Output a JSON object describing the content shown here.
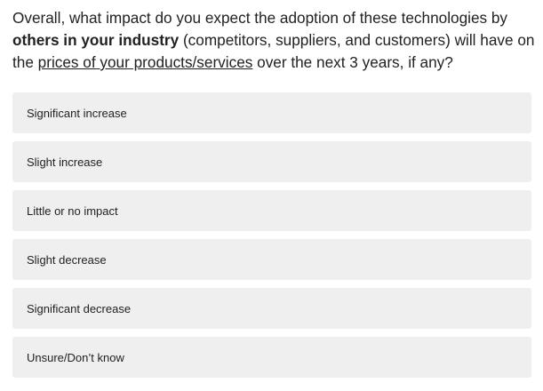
{
  "question": {
    "part1": "Overall, what impact do you expect the adoption of these technologies by ",
    "bold": "others in your industry",
    "part2": " (competitors, suppliers, and customers) will have on the ",
    "link": "prices of your products/services",
    "part3": " over the next 3 years, if any?"
  },
  "options": [
    {
      "label": "Significant increase"
    },
    {
      "label": "Slight increase"
    },
    {
      "label": "Little or no impact"
    },
    {
      "label": "Slight decrease"
    },
    {
      "label": "Significant decrease"
    },
    {
      "label": "Unsure/Don’t know"
    }
  ],
  "colors": {
    "option_bg": "#efefef",
    "text": "#222222"
  }
}
